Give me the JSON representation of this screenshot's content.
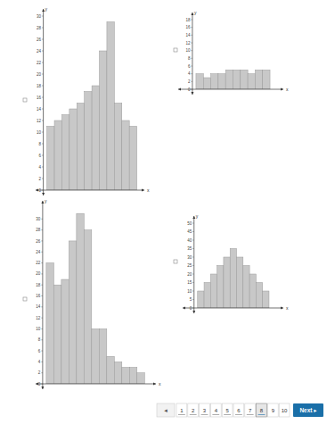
{
  "chart_data": [
    {
      "type": "histogram",
      "bins": [
        0,
        1,
        2,
        3,
        4,
        5,
        6,
        7,
        8,
        9,
        10,
        11,
        12
      ],
      "values": [
        11,
        12,
        13,
        14,
        15,
        17,
        18,
        24,
        29,
        15,
        12,
        11
      ],
      "xlim": [
        -1.5,
        13
      ],
      "ylim": [
        0,
        30
      ],
      "yticks": [
        0,
        2,
        4,
        6,
        8,
        10,
        12,
        14,
        16,
        18,
        20,
        22,
        24,
        26,
        28,
        30
      ],
      "x_label": "x",
      "y_label": "y",
      "tick_labels": "y",
      "color": "#c8c8c8"
    },
    {
      "type": "histogram",
      "bins": [
        0,
        1,
        2,
        3,
        4,
        5,
        6,
        7,
        8,
        9,
        10
      ],
      "values": [
        4,
        3,
        4,
        4,
        5,
        5,
        5,
        4,
        5,
        5
      ],
      "xlim": [
        -2.4,
        11.8
      ],
      "ylim": [
        0,
        18
      ],
      "yticks": [
        0,
        2,
        4,
        6,
        8,
        10,
        12,
        14,
        16,
        18
      ],
      "x_label": "x",
      "y_label": "y",
      "tick_labels": "y",
      "color": "#c8c8c8"
    },
    {
      "type": "histogram",
      "bins": [
        0,
        1,
        2,
        3,
        4,
        5,
        6,
        7,
        8,
        9,
        10,
        11,
        12,
        13
      ],
      "values": [
        22,
        18,
        19,
        26,
        31,
        28,
        10,
        10,
        5,
        4,
        3,
        3,
        2
      ],
      "xlim": [
        -1.4,
        14.5
      ],
      "ylim": [
        0,
        32
      ],
      "yticks": [
        0,
        2,
        4,
        6,
        8,
        10,
        12,
        14,
        16,
        18,
        20,
        22,
        24,
        26,
        28,
        30
      ],
      "x_label": "x",
      "y_label": "y",
      "tick_labels": "y",
      "color": "#c8c8c8"
    },
    {
      "type": "histogram",
      "bins": [
        0,
        1,
        2,
        3,
        4,
        5,
        6,
        7,
        8,
        9,
        10,
        11
      ],
      "values": [
        10,
        15,
        20,
        25,
        30,
        35,
        30,
        25,
        20,
        15,
        10
      ],
      "xlim": [
        -2.3,
        13.2
      ],
      "ylim": [
        0,
        50
      ],
      "yticks": [
        0,
        5,
        10,
        15,
        20,
        25,
        30,
        35,
        40,
        45,
        50
      ],
      "x_label": "x",
      "y_label": "y",
      "tick_labels": "y",
      "color": "#c8c8c8"
    }
  ],
  "pagination": {
    "prev": "◂",
    "pages": [
      "1",
      "2",
      "3",
      "4",
      "5",
      "6",
      "7",
      "8",
      "9",
      "10"
    ],
    "current": "8",
    "next": "Next ▸"
  }
}
